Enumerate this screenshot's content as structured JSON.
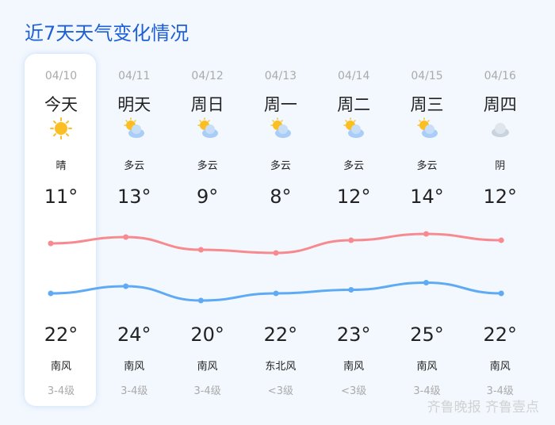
{
  "title": "近7天天气变化情况",
  "colors": {
    "title": "#1d5fd6",
    "low_line": "#f78a8f",
    "high_line": "#5eaaf5"
  },
  "days": [
    {
      "date": "04/10",
      "day": "今天",
      "icon": "sun-icon",
      "cond": "晴",
      "low": "11°",
      "high": "22°",
      "wind": "南风",
      "level": "3-4级"
    },
    {
      "date": "04/11",
      "day": "明天",
      "icon": "partly-cloudy-icon",
      "cond": "多云",
      "low": "13°",
      "high": "24°",
      "wind": "南风",
      "level": "3-4级"
    },
    {
      "date": "04/12",
      "day": "周日",
      "icon": "partly-cloudy-icon",
      "cond": "多云",
      "low": "9°",
      "high": "20°",
      "wind": "南风",
      "level": "3-4级"
    },
    {
      "date": "04/13",
      "day": "周一",
      "icon": "partly-cloudy-icon",
      "cond": "多云",
      "low": "8°",
      "high": "22°",
      "wind": "东北风",
      "level": "<3级"
    },
    {
      "date": "04/14",
      "day": "周二",
      "icon": "partly-cloudy-icon",
      "cond": "多云",
      "low": "12°",
      "high": "23°",
      "wind": "南风",
      "level": "<3级"
    },
    {
      "date": "04/15",
      "day": "周三",
      "icon": "partly-cloudy-icon",
      "cond": "多云",
      "low": "14°",
      "high": "25°",
      "wind": "南风",
      "level": "3-4级"
    },
    {
      "date": "04/16",
      "day": "周四",
      "icon": "overcast-icon",
      "cond": "阴",
      "low": "12°",
      "high": "22°",
      "wind": "南风",
      "level": "3-4级"
    }
  ],
  "watermark": "齐鲁晚报 齐鲁壹点"
}
